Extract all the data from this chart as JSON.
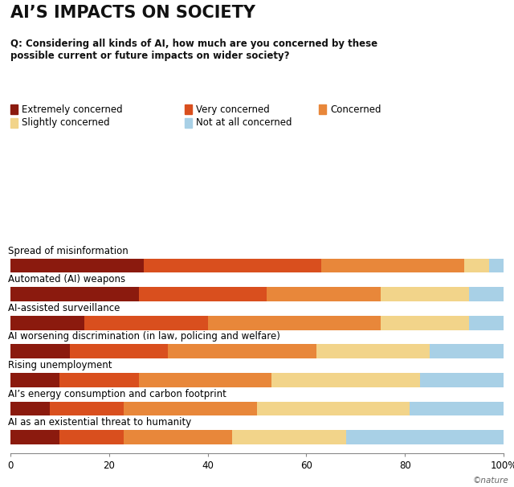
{
  "title": "AI’S IMPACTS ON SOCIETY",
  "question": "Q: Considering all kinds of AI, how much are you concerned by these\npossible current or future impacts on wider society?",
  "categories": [
    "Spread of misinformation",
    "Automated (AI) weapons",
    "AI-assisted surveillance",
    "AI worsening discrimination (in law, policing and welfare)",
    "Rising unemployment",
    "AI’s energy consumption and carbon footprint",
    "AI as an existential threat to humanity"
  ],
  "legend_labels": [
    "Extremely concerned",
    "Very concerned",
    "Concerned",
    "Slightly concerned",
    "Not at all concerned"
  ],
  "colors": [
    "#8B1A0E",
    "#D94F1E",
    "#E8873A",
    "#F2D48A",
    "#A8D0E6"
  ],
  "data": [
    [
      27,
      36,
      29,
      5,
      3
    ],
    [
      26,
      26,
      23,
      18,
      7
    ],
    [
      15,
      25,
      35,
      18,
      7
    ],
    [
      12,
      20,
      30,
      23,
      15
    ],
    [
      10,
      16,
      27,
      30,
      17
    ],
    [
      8,
      15,
      27,
      31,
      19
    ],
    [
      10,
      13,
      22,
      23,
      32
    ]
  ],
  "background_color": "#FFFFFF",
  "copyright": "©nature",
  "title_fontsize": 15,
  "question_fontsize": 8.5,
  "label_fontsize": 8.5,
  "tick_fontsize": 8.5,
  "legend_fontsize": 8.5
}
